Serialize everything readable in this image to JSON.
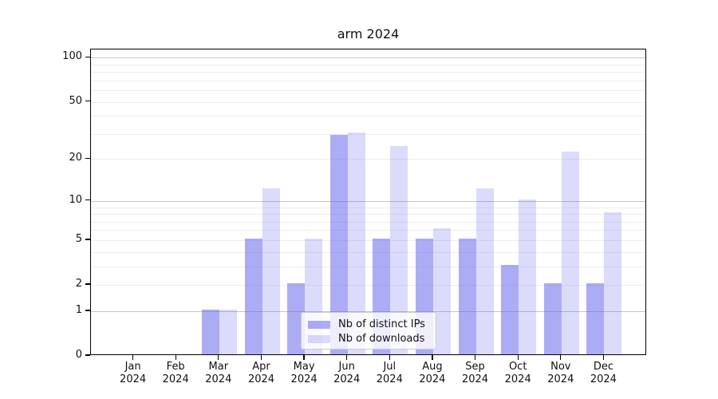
{
  "chart_data": {
    "type": "bar",
    "title": "arm 2024",
    "categories": [
      "Jan",
      "Feb",
      "Mar",
      "Apr",
      "May",
      "Jun",
      "Jul",
      "Aug",
      "Sep",
      "Oct",
      "Nov",
      "Dec"
    ],
    "year": "2024",
    "series": [
      {
        "name": "Nb of distinct IPs",
        "color": "rgba(90,90,235,0.5)",
        "values": [
          0,
          0,
          1,
          5,
          2,
          29,
          5,
          5,
          5,
          3,
          2,
          2
        ]
      },
      {
        "name": "Nb of downloads",
        "color": "rgba(90,90,235,0.22)",
        "values": [
          0,
          0,
          1,
          12,
          5,
          30,
          24,
          6,
          12,
          10,
          22,
          8
        ]
      }
    ],
    "yticks": [
      0,
      1,
      2,
      5,
      10,
      20,
      50,
      100
    ],
    "minor_yticks": [
      3,
      4,
      6,
      7,
      8,
      9,
      30,
      40,
      60,
      70,
      80,
      90
    ],
    "scale": "log1p",
    "ylim": [
      0,
      113
    ],
    "grid": true,
    "legend_position": "lower center",
    "colors": {
      "grid_major": "#c6c6c6",
      "grid_minor": "#ededed",
      "axis": "#000000",
      "background": "#ffffff"
    }
  }
}
